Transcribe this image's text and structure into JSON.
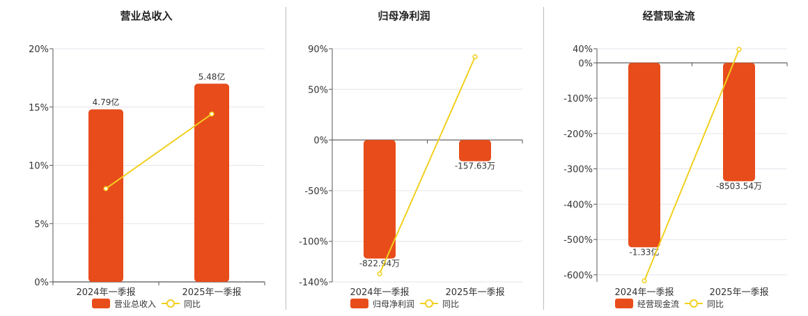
{
  "legend_line_label": "同比",
  "colors": {
    "bar": "#E84C1B",
    "line": "#F2D01E",
    "grid": "#E3E3EC",
    "axis": "#555555"
  },
  "chart_data": [
    {
      "type": "bar",
      "title": "营业总收入",
      "categories": [
        "2024年一季报",
        "2025年一季报"
      ],
      "series": [
        {
          "name": "营业总收入",
          "kind": "bar",
          "values": [
            14.8,
            17.0
          ],
          "labels": [
            "4.79亿",
            "5.48亿"
          ]
        },
        {
          "name": "同比",
          "kind": "line",
          "values": [
            8.0,
            14.4
          ]
        }
      ],
      "yticks": [
        0,
        5,
        10,
        15,
        20
      ],
      "ytick_labels": [
        "0%",
        "5%",
        "10%",
        "15%",
        "20%"
      ],
      "ylim": [
        0,
        20
      ],
      "grid": true,
      "legend": "bottom"
    },
    {
      "type": "bar",
      "title": "归母净利润",
      "categories": [
        "2024年一季报",
        "2025年一季报"
      ],
      "series": [
        {
          "name": "归母净利润",
          "kind": "bar",
          "values": [
            -117,
            -21
          ],
          "labels": [
            "-822.94万",
            "-157.63万"
          ]
        },
        {
          "name": "同比",
          "kind": "line",
          "values": [
            -132,
            82
          ]
        }
      ],
      "yticks": [
        90,
        50,
        0,
        -50,
        -100,
        -140
      ],
      "ytick_labels": [
        "90%",
        "50%",
        "0%",
        "-50%",
        "-100%",
        "-140%"
      ],
      "ylim": [
        -140,
        90
      ],
      "grid": true,
      "legend": "bottom"
    },
    {
      "type": "bar",
      "title": "经营现金流",
      "categories": [
        "2024年一季报",
        "2025年一季报"
      ],
      "series": [
        {
          "name": "经营现金流",
          "kind": "bar",
          "values": [
            -522,
            -335
          ],
          "labels": [
            "-1.33亿",
            "-8503.54万"
          ]
        },
        {
          "name": "同比",
          "kind": "line",
          "values": [
            -617,
            38
          ]
        }
      ],
      "yticks": [
        40,
        0,
        -100,
        -200,
        -300,
        -400,
        -500,
        -600
      ],
      "ytick_labels": [
        "40%",
        "0%",
        "-100%",
        "-200%",
        "-300%",
        "-400%",
        "-500%",
        "-600%"
      ],
      "ylim": [
        -620,
        40
      ],
      "grid": true,
      "legend": "bottom"
    }
  ]
}
